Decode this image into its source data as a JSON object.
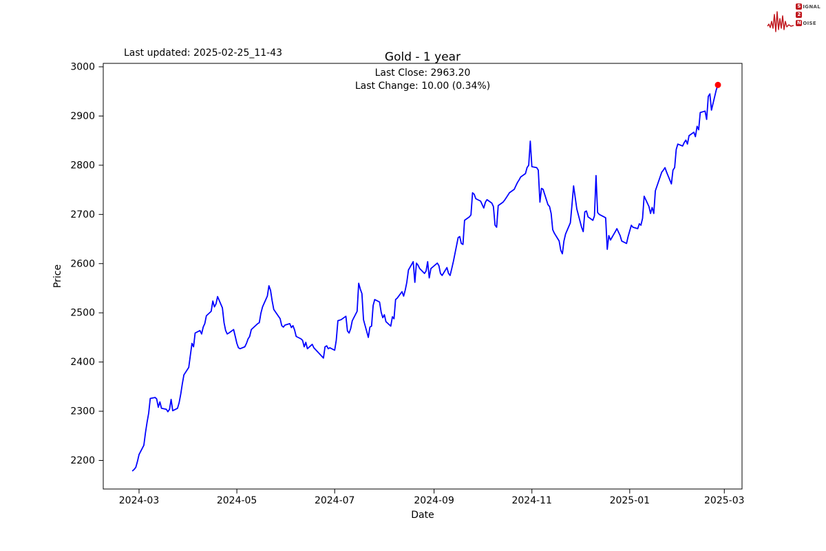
{
  "page": {
    "background": "#ffffff"
  },
  "header": {
    "last_updated_text": "Last updated: 2025-02-25_11-43",
    "title": "Gold - 1 year"
  },
  "annotation": {
    "last_close_text": "Last Close: 2963.20",
    "last_change_text": "Last Change: 10.00 (0.34%)"
  },
  "logo": {
    "line1_box": "S",
    "line1_rest": "IGNAL",
    "line2_box": "2",
    "line3_box": "N",
    "line3_rest": "OISE",
    "color": "#c0181f"
  },
  "chart_data": {
    "type": "line",
    "title": "Gold - 1 year",
    "xlabel": "Date",
    "ylabel": "Price",
    "grid": false,
    "legend": "none",
    "line_color": "#0000ff",
    "marker_color": "#ff0000",
    "last_close": 2963.2,
    "last_change": 10.0,
    "last_change_pct": 0.34,
    "ylim": [
      2142,
      3007
    ],
    "xlim": [
      "2024-02-07",
      "2025-03-12"
    ],
    "y_ticks": [
      2200,
      2300,
      2400,
      2500,
      2600,
      2700,
      2800,
      2900,
      3000
    ],
    "x_ticks": [
      {
        "label": "2024-03",
        "date": "2024-03-01"
      },
      {
        "label": "2024-05",
        "date": "2024-05-01"
      },
      {
        "label": "2024-07",
        "date": "2024-07-01"
      },
      {
        "label": "2024-09",
        "date": "2024-09-01"
      },
      {
        "label": "2024-11",
        "date": "2024-11-01"
      },
      {
        "label": "2025-01",
        "date": "2025-01-01"
      },
      {
        "label": "2025-03",
        "date": "2025-03-01"
      }
    ],
    "series": [
      {
        "name": "Gold",
        "points": [
          [
            "2024-02-26",
            2179
          ],
          [
            "2024-02-27",
            2182
          ],
          [
            "2024-02-28",
            2186
          ],
          [
            "2024-02-29",
            2198
          ],
          [
            "2024-03-01",
            2212
          ],
          [
            "2024-03-04",
            2231
          ],
          [
            "2024-03-05",
            2256
          ],
          [
            "2024-03-06",
            2277
          ],
          [
            "2024-03-07",
            2296
          ],
          [
            "2024-03-08",
            2326
          ],
          [
            "2024-03-11",
            2328
          ],
          [
            "2024-03-12",
            2325
          ],
          [
            "2024-03-13",
            2308
          ],
          [
            "2024-03-14",
            2319
          ],
          [
            "2024-03-15",
            2306
          ],
          [
            "2024-03-18",
            2304
          ],
          [
            "2024-03-19",
            2299
          ],
          [
            "2024-03-20",
            2304
          ],
          [
            "2024-03-21",
            2324
          ],
          [
            "2024-03-22",
            2301
          ],
          [
            "2024-03-25",
            2306
          ],
          [
            "2024-03-26",
            2317
          ],
          [
            "2024-03-27",
            2335
          ],
          [
            "2024-03-28",
            2356
          ],
          [
            "2024-03-29",
            2374
          ],
          [
            "2024-04-01",
            2389
          ],
          [
            "2024-04-02",
            2413
          ],
          [
            "2024-04-03",
            2438
          ],
          [
            "2024-04-04",
            2431
          ],
          [
            "2024-04-05",
            2459
          ],
          [
            "2024-04-08",
            2464
          ],
          [
            "2024-04-09",
            2457
          ],
          [
            "2024-04-10",
            2471
          ],
          [
            "2024-04-11",
            2478
          ],
          [
            "2024-04-12",
            2494
          ],
          [
            "2024-04-15",
            2503
          ],
          [
            "2024-04-16",
            2524
          ],
          [
            "2024-04-17",
            2512
          ],
          [
            "2024-04-18",
            2518
          ],
          [
            "2024-04-19",
            2533
          ],
          [
            "2024-04-22",
            2510
          ],
          [
            "2024-04-23",
            2480
          ],
          [
            "2024-04-24",
            2464
          ],
          [
            "2024-04-25",
            2457
          ],
          [
            "2024-04-26",
            2459
          ],
          [
            "2024-04-29",
            2466
          ],
          [
            "2024-04-30",
            2452
          ],
          [
            "2024-05-01",
            2438
          ],
          [
            "2024-05-02",
            2429
          ],
          [
            "2024-05-03",
            2427
          ],
          [
            "2024-05-06",
            2431
          ],
          [
            "2024-05-07",
            2438
          ],
          [
            "2024-05-08",
            2447
          ],
          [
            "2024-05-09",
            2452
          ],
          [
            "2024-05-10",
            2466
          ],
          [
            "2024-05-13",
            2475
          ],
          [
            "2024-05-14",
            2478
          ],
          [
            "2024-05-15",
            2480
          ],
          [
            "2024-05-16",
            2499
          ],
          [
            "2024-05-17",
            2512
          ],
          [
            "2024-05-20",
            2534
          ],
          [
            "2024-05-21",
            2555
          ],
          [
            "2024-05-22",
            2546
          ],
          [
            "2024-05-23",
            2525
          ],
          [
            "2024-05-24",
            2507
          ],
          [
            "2024-05-28",
            2488
          ],
          [
            "2024-05-29",
            2474
          ],
          [
            "2024-05-30",
            2471
          ],
          [
            "2024-05-31",
            2475
          ],
          [
            "2024-06-03",
            2478
          ],
          [
            "2024-06-04",
            2470
          ],
          [
            "2024-06-05",
            2474
          ],
          [
            "2024-06-06",
            2465
          ],
          [
            "2024-06-07",
            2452
          ],
          [
            "2024-06-10",
            2447
          ],
          [
            "2024-06-11",
            2444
          ],
          [
            "2024-06-12",
            2431
          ],
          [
            "2024-06-13",
            2440
          ],
          [
            "2024-06-14",
            2427
          ],
          [
            "2024-06-17",
            2436
          ],
          [
            "2024-06-18",
            2429
          ],
          [
            "2024-06-20",
            2422
          ],
          [
            "2024-06-24",
            2408
          ],
          [
            "2024-06-25",
            2431
          ],
          [
            "2024-06-26",
            2433
          ],
          [
            "2024-06-27",
            2427
          ],
          [
            "2024-06-28",
            2429
          ],
          [
            "2024-07-01",
            2424
          ],
          [
            "2024-07-02",
            2444
          ],
          [
            "2024-07-03",
            2484
          ],
          [
            "2024-07-05",
            2486
          ],
          [
            "2024-07-08",
            2493
          ],
          [
            "2024-07-09",
            2463
          ],
          [
            "2024-07-10",
            2459
          ],
          [
            "2024-07-11",
            2468
          ],
          [
            "2024-07-12",
            2484
          ],
          [
            "2024-07-15",
            2503
          ],
          [
            "2024-07-16",
            2560
          ],
          [
            "2024-07-17",
            2548
          ],
          [
            "2024-07-18",
            2539
          ],
          [
            "2024-07-19",
            2486
          ],
          [
            "2024-07-22",
            2450
          ],
          [
            "2024-07-23",
            2471
          ],
          [
            "2024-07-24",
            2473
          ],
          [
            "2024-07-25",
            2515
          ],
          [
            "2024-07-26",
            2527
          ],
          [
            "2024-07-29",
            2522
          ],
          [
            "2024-07-30",
            2501
          ],
          [
            "2024-07-31",
            2490
          ],
          [
            "2024-08-01",
            2496
          ],
          [
            "2024-08-02",
            2482
          ],
          [
            "2024-08-05",
            2473
          ],
          [
            "2024-08-06",
            2492
          ],
          [
            "2024-08-07",
            2488
          ],
          [
            "2024-08-08",
            2527
          ],
          [
            "2024-08-09",
            2530
          ],
          [
            "2024-08-12",
            2543
          ],
          [
            "2024-08-13",
            2534
          ],
          [
            "2024-08-14",
            2546
          ],
          [
            "2024-08-15",
            2562
          ],
          [
            "2024-08-16",
            2587
          ],
          [
            "2024-08-19",
            2604
          ],
          [
            "2024-08-20",
            2562
          ],
          [
            "2024-08-21",
            2601
          ],
          [
            "2024-08-22",
            2597
          ],
          [
            "2024-08-23",
            2590
          ],
          [
            "2024-08-26",
            2580
          ],
          [
            "2024-08-27",
            2585
          ],
          [
            "2024-08-28",
            2604
          ],
          [
            "2024-08-29",
            2571
          ],
          [
            "2024-08-30",
            2590
          ],
          [
            "2024-09-03",
            2601
          ],
          [
            "2024-09-04",
            2596
          ],
          [
            "2024-09-05",
            2580
          ],
          [
            "2024-09-06",
            2576
          ],
          [
            "2024-09-09",
            2592
          ],
          [
            "2024-09-10",
            2580
          ],
          [
            "2024-09-11",
            2576
          ],
          [
            "2024-09-12",
            2590
          ],
          [
            "2024-09-13",
            2604
          ],
          [
            "2024-09-16",
            2653
          ],
          [
            "2024-09-17",
            2655
          ],
          [
            "2024-09-18",
            2641
          ],
          [
            "2024-09-19",
            2639
          ],
          [
            "2024-09-20",
            2688
          ],
          [
            "2024-09-23",
            2695
          ],
          [
            "2024-09-24",
            2699
          ],
          [
            "2024-09-25",
            2744
          ],
          [
            "2024-09-26",
            2741
          ],
          [
            "2024-09-27",
            2732
          ],
          [
            "2024-09-30",
            2727
          ],
          [
            "2024-10-01",
            2720
          ],
          [
            "2024-10-02",
            2713
          ],
          [
            "2024-10-03",
            2725
          ],
          [
            "2024-10-04",
            2730
          ],
          [
            "2024-10-07",
            2723
          ],
          [
            "2024-10-08",
            2716
          ],
          [
            "2024-10-09",
            2678
          ],
          [
            "2024-10-10",
            2674
          ],
          [
            "2024-10-11",
            2718
          ],
          [
            "2024-10-14",
            2725
          ],
          [
            "2024-10-15",
            2729
          ],
          [
            "2024-10-16",
            2734
          ],
          [
            "2024-10-17",
            2739
          ],
          [
            "2024-10-18",
            2744
          ],
          [
            "2024-10-21",
            2751
          ],
          [
            "2024-10-22",
            2758
          ],
          [
            "2024-10-23",
            2765
          ],
          [
            "2024-10-24",
            2770
          ],
          [
            "2024-10-25",
            2776
          ],
          [
            "2024-10-28",
            2783
          ],
          [
            "2024-10-29",
            2795
          ],
          [
            "2024-10-30",
            2800
          ],
          [
            "2024-10-31",
            2849
          ],
          [
            "2024-11-01",
            2797
          ],
          [
            "2024-11-04",
            2795
          ],
          [
            "2024-11-05",
            2790
          ],
          [
            "2024-11-06",
            2725
          ],
          [
            "2024-11-07",
            2753
          ],
          [
            "2024-11-08",
            2751
          ],
          [
            "2024-11-11",
            2720
          ],
          [
            "2024-11-12",
            2716
          ],
          [
            "2024-11-13",
            2702
          ],
          [
            "2024-11-14",
            2669
          ],
          [
            "2024-11-15",
            2662
          ],
          [
            "2024-11-18",
            2646
          ],
          [
            "2024-11-19",
            2627
          ],
          [
            "2024-11-20",
            2620
          ],
          [
            "2024-11-21",
            2646
          ],
          [
            "2024-11-22",
            2660
          ],
          [
            "2024-11-25",
            2683
          ],
          [
            "2024-11-26",
            2720
          ],
          [
            "2024-11-27",
            2758
          ],
          [
            "2024-11-29",
            2711
          ],
          [
            "2024-12-02",
            2674
          ],
          [
            "2024-12-03",
            2665
          ],
          [
            "2024-12-04",
            2705
          ],
          [
            "2024-12-05",
            2707
          ],
          [
            "2024-12-06",
            2695
          ],
          [
            "2024-12-09",
            2688
          ],
          [
            "2024-12-10",
            2697
          ],
          [
            "2024-12-11",
            2779
          ],
          [
            "2024-12-12",
            2704
          ],
          [
            "2024-12-13",
            2700
          ],
          [
            "2024-12-16",
            2695
          ],
          [
            "2024-12-17",
            2693
          ],
          [
            "2024-12-18",
            2629
          ],
          [
            "2024-12-19",
            2657
          ],
          [
            "2024-12-20",
            2648
          ],
          [
            "2024-12-23",
            2665
          ],
          [
            "2024-12-24",
            2671
          ],
          [
            "2024-12-26",
            2657
          ],
          [
            "2024-12-27",
            2646
          ],
          [
            "2024-12-30",
            2641
          ],
          [
            "2024-12-31",
            2655
          ],
          [
            "2025-01-02",
            2678
          ],
          [
            "2025-01-03",
            2674
          ],
          [
            "2025-01-06",
            2671
          ],
          [
            "2025-01-07",
            2681
          ],
          [
            "2025-01-08",
            2678
          ],
          [
            "2025-01-09",
            2692
          ],
          [
            "2025-01-10",
            2737
          ],
          [
            "2025-01-13",
            2716
          ],
          [
            "2025-01-14",
            2702
          ],
          [
            "2025-01-15",
            2714
          ],
          [
            "2025-01-16",
            2702
          ],
          [
            "2025-01-17",
            2748
          ],
          [
            "2025-01-21",
            2786
          ],
          [
            "2025-01-22",
            2790
          ],
          [
            "2025-01-23",
            2795
          ],
          [
            "2025-01-24",
            2786
          ],
          [
            "2025-01-27",
            2762
          ],
          [
            "2025-01-28",
            2790
          ],
          [
            "2025-01-29",
            2795
          ],
          [
            "2025-01-30",
            2832
          ],
          [
            "2025-01-31",
            2843
          ],
          [
            "2025-02-03",
            2839
          ],
          [
            "2025-02-04",
            2846
          ],
          [
            "2025-02-05",
            2851
          ],
          [
            "2025-02-06",
            2843
          ],
          [
            "2025-02-07",
            2860
          ],
          [
            "2025-02-10",
            2867
          ],
          [
            "2025-02-11",
            2858
          ],
          [
            "2025-02-12",
            2879
          ],
          [
            "2025-02-13",
            2872
          ],
          [
            "2025-02-14",
            2907
          ],
          [
            "2025-02-17",
            2910
          ],
          [
            "2025-02-18",
            2893
          ],
          [
            "2025-02-19",
            2940
          ],
          [
            "2025-02-20",
            2945
          ],
          [
            "2025-02-21",
            2912
          ],
          [
            "2025-02-24",
            2953.2
          ],
          [
            "2025-02-25",
            2963.2
          ]
        ]
      }
    ]
  }
}
